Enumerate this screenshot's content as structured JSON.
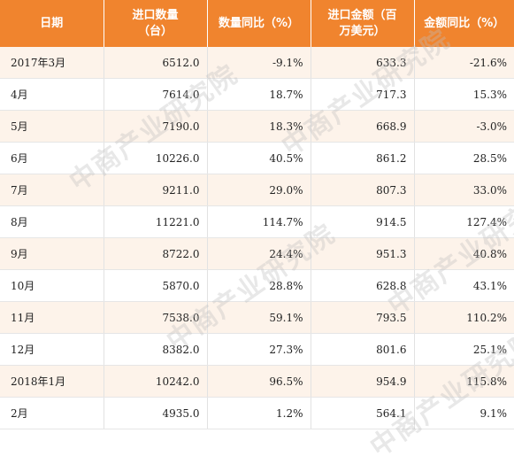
{
  "table": {
    "headers": [
      {
        "line1": "日期",
        "line2": ""
      },
      {
        "line1": "进口数量",
        "line2": "（台）"
      },
      {
        "line1": "数量同比（%）",
        "line2": ""
      },
      {
        "line1": "进口金额（百",
        "line2": "万美元）"
      },
      {
        "line1": "金额同比（%）",
        "line2": ""
      }
    ],
    "rows": [
      {
        "date": "2017年3月",
        "qty": "6512.0",
        "qty_yoy": "-9.1%",
        "amount": "633.3",
        "amount_yoy": "-21.6%"
      },
      {
        "date": "4月",
        "qty": "7614.0",
        "qty_yoy": "18.7%",
        "amount": "717.3",
        "amount_yoy": "15.3%"
      },
      {
        "date": "5月",
        "qty": "7190.0",
        "qty_yoy": "18.3%",
        "amount": "668.9",
        "amount_yoy": "-3.0%"
      },
      {
        "date": "6月",
        "qty": "10226.0",
        "qty_yoy": "40.5%",
        "amount": "861.2",
        "amount_yoy": "28.5%"
      },
      {
        "date": "7月",
        "qty": "9211.0",
        "qty_yoy": "29.0%",
        "amount": "807.3",
        "amount_yoy": "33.0%"
      },
      {
        "date": "8月",
        "qty": "11221.0",
        "qty_yoy": "114.7%",
        "amount": "914.5",
        "amount_yoy": "127.4%"
      },
      {
        "date": "9月",
        "qty": "8722.0",
        "qty_yoy": "24.4%",
        "amount": "951.3",
        "amount_yoy": "40.8%"
      },
      {
        "date": "10月",
        "qty": "5870.0",
        "qty_yoy": "28.8%",
        "amount": "628.8",
        "amount_yoy": "43.1%"
      },
      {
        "date": "11月",
        "qty": "7538.0",
        "qty_yoy": "59.1%",
        "amount": "793.5",
        "amount_yoy": "110.2%"
      },
      {
        "date": "12月",
        "qty": "8382.0",
        "qty_yoy": "27.3%",
        "amount": "801.6",
        "amount_yoy": "25.1%"
      },
      {
        "date": "2018年1月",
        "qty": "10242.0",
        "qty_yoy": "96.5%",
        "amount": "954.9",
        "amount_yoy": "115.8%"
      },
      {
        "date": "2月",
        "qty": "4935.0",
        "qty_yoy": "1.2%",
        "amount": "564.1",
        "amount_yoy": "9.1%"
      }
    ]
  },
  "watermark": "中商产业研究院",
  "colors": {
    "header_bg": "#f0842e",
    "stripe_bg": "#fdf3ea"
  }
}
